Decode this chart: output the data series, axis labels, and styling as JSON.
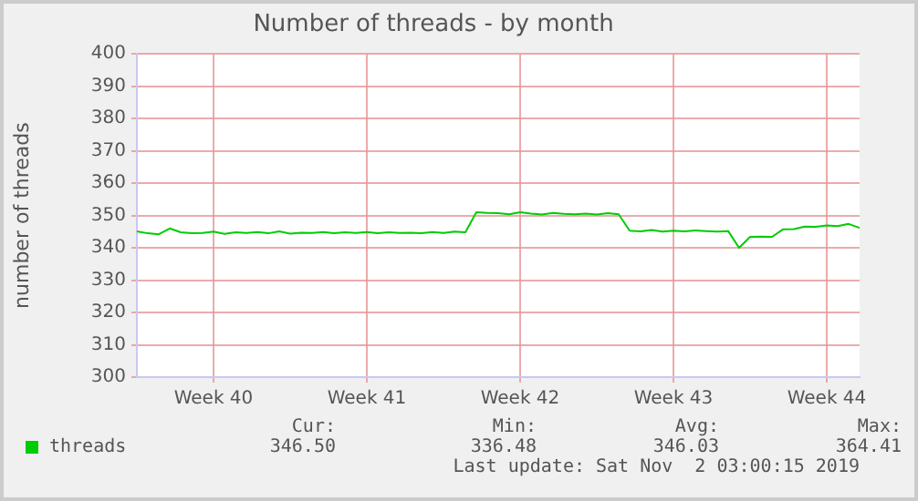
{
  "chart_data": {
    "type": "line",
    "title": "Number of threads - by month",
    "ylabel": "number of threads",
    "categories": [
      null,
      null,
      null,
      null,
      null,
      null,
      null,
      "Week 40",
      null,
      null,
      null,
      null,
      null,
      null,
      null,
      null,
      null,
      null,
      null,
      null,
      null,
      "Week 41",
      null,
      null,
      null,
      null,
      null,
      null,
      null,
      null,
      null,
      null,
      null,
      null,
      null,
      "Week 42",
      null,
      null,
      null,
      null,
      null,
      null,
      null,
      null,
      null,
      null,
      null,
      null,
      null,
      "Week 43",
      null,
      null,
      null,
      null,
      null,
      null,
      null,
      null,
      null,
      null,
      null,
      null,
      null,
      "Week 44",
      null,
      null,
      null
    ],
    "series": [
      {
        "name": "threads",
        "color": "#00cc00",
        "values": [
          345.1,
          344.5,
          344.2,
          346,
          344.8,
          344.5,
          344.6,
          345,
          344.3,
          344.8,
          344.6,
          344.9,
          344.5,
          345.1,
          344.4,
          344.7,
          344.6,
          344.9,
          344.5,
          344.8,
          344.6,
          344.9,
          344.5,
          344.8,
          344.6,
          344.7,
          344.5,
          344.9,
          344.6,
          345,
          344.8,
          351,
          350.8,
          350.7,
          350.4,
          351,
          350.6,
          350.3,
          350.8,
          350.5,
          350.4,
          350.6,
          350.3,
          350.7,
          350.4,
          345.3,
          345.1,
          345.5,
          345,
          345.3,
          345.1,
          345.4,
          345.2,
          345,
          345.2,
          340,
          343.4,
          343.5,
          343.4,
          345.7,
          345.8,
          346.6,
          346.5,
          346.9,
          346.7,
          347.4,
          346.2
        ]
      }
    ],
    "ylim": [
      300,
      400
    ],
    "yticks": [
      300,
      310,
      320,
      330,
      340,
      350,
      360,
      370,
      380,
      390,
      400
    ],
    "grid": true,
    "legend": "bottom left",
    "marker": "none",
    "line_style": "solid",
    "annotations": [
      "Cur:",
      "346.50",
      "Min:",
      "336.48",
      "Avg:",
      "346.03",
      "Max:",
      "364.41",
      "Last update: Sat Nov  2 03:00:15 2019"
    ]
  }
}
